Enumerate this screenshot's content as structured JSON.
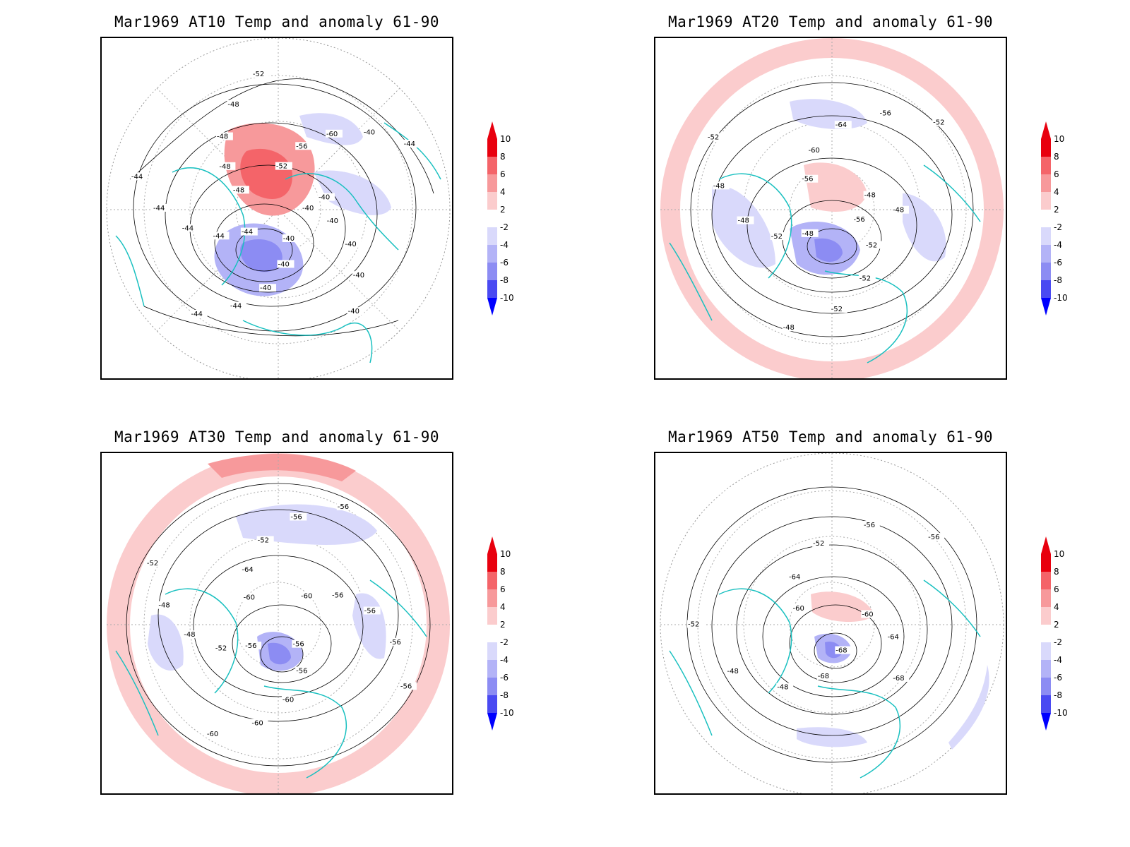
{
  "panels": [
    {
      "title": "Mar1969 AT10 Temp and anomaly 61-90",
      "contour_labels": [
        "-40",
        "-40",
        "-40",
        "-40",
        "-40",
        "-40",
        "-40",
        "-40",
        "-44",
        "-44",
        "-44",
        "-44",
        "-44",
        "-44",
        "-44",
        "-48",
        "-48",
        "-48",
        "-48",
        "-52",
        "-52",
        "-56",
        "-60",
        "-40",
        "-44",
        "-40"
      ],
      "anomalies": [
        {
          "sign": "pos",
          "level": 8,
          "region": "north-atlantic-greenland"
        },
        {
          "sign": "neg",
          "level": 6,
          "region": "europe-scandinavia"
        },
        {
          "sign": "neg",
          "level": 2,
          "region": "north-pacific"
        },
        {
          "sign": "neg",
          "level": 2,
          "region": "siberia"
        }
      ]
    },
    {
      "title": "Mar1969 AT20 Temp and anomaly 61-90",
      "contour_labels": [
        "-56",
        "-52",
        "-52",
        "-52",
        "-48",
        "-48",
        "-52",
        "-48",
        "-48",
        "-52",
        "-56",
        "-60",
        "-64",
        "-56",
        "-52",
        "-48",
        "-48"
      ],
      "anomalies": [
        {
          "sign": "pos",
          "level": 2,
          "region": "outer-ring"
        },
        {
          "sign": "pos",
          "level": 4,
          "region": "north-atlantic"
        },
        {
          "sign": "neg",
          "level": 6,
          "region": "europe"
        },
        {
          "sign": "neg",
          "level": 2,
          "region": "siberia"
        },
        {
          "sign": "neg",
          "level": 2,
          "region": "north-pacific"
        }
      ]
    },
    {
      "title": "Mar1969 AT30 Temp and anomaly 61-90",
      "contour_labels": [
        "-56",
        "-56",
        "-60",
        "-60",
        "-60",
        "-56",
        "-52",
        "-48",
        "-48",
        "-52",
        "-60",
        "-64",
        "-52",
        "-56",
        "-56",
        "-60",
        "-56",
        "-56",
        "-56",
        "-56"
      ],
      "anomalies": [
        {
          "sign": "pos",
          "level": 2,
          "region": "outer-ring"
        },
        {
          "sign": "pos",
          "level": 4,
          "region": "tropics-top"
        },
        {
          "sign": "neg",
          "level": 2,
          "region": "siberia"
        },
        {
          "sign": "neg",
          "level": 6,
          "region": "europe"
        },
        {
          "sign": "neg",
          "level": 2,
          "region": "north-america-west"
        }
      ]
    },
    {
      "title": "Mar1969 AT50 Temp and anomaly 61-90",
      "contour_labels": [
        "-68",
        "-68",
        "-48",
        "-48",
        "-52",
        "-60",
        "-64",
        "-52",
        "-56",
        "-56",
        "-60",
        "-64",
        "-68"
      ],
      "anomalies": [
        {
          "sign": "neg",
          "level": 6,
          "region": "europe"
        },
        {
          "sign": "pos",
          "level": 2,
          "region": "arctic"
        },
        {
          "sign": "neg",
          "level": 2,
          "region": "north-africa"
        },
        {
          "sign": "neg",
          "level": 2,
          "region": "east-asia-edge"
        }
      ]
    }
  ],
  "colorbar": {
    "labels": [
      "10",
      "8",
      "6",
      "4",
      "2",
      "-2",
      "-4",
      "-6",
      "-8",
      "-10"
    ],
    "colors": [
      "#e8000e",
      "#f46469",
      "#f7999b",
      "#fbcccd",
      "#ffffff",
      "#d9d9fb",
      "#b3b3f7",
      "#8c8cf3",
      "#4a4af2",
      "#0000ff"
    ],
    "top_color": "#e8000e",
    "bottom_color": "#0000ff"
  },
  "colors": {
    "coast": "#19c0c0",
    "contour": "#000000",
    "grid": "#888888"
  }
}
